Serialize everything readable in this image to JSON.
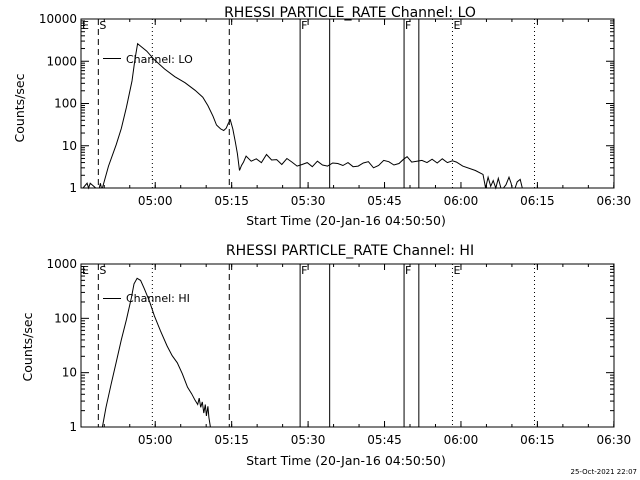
{
  "chart_data": [
    {
      "type": "line",
      "title": "RHESSI PARTICLE_RATE Channel: LO",
      "xlabel": "Start Time (20-Jan-16 04:50:50)",
      "ylabel": "Counts/sec",
      "yscale": "log",
      "ylim": [
        1,
        10000
      ],
      "y_ticks": [
        "1",
        "10",
        "100",
        "1000",
        "10000"
      ],
      "x_range_minutes": [
        -5.4,
        99.2
      ],
      "x_ticks": [
        "05:00",
        "05:15",
        "05:30",
        "05:45",
        "06:00",
        "06:15",
        "06:30"
      ],
      "legend": "Channel: LO",
      "legend_placement": "top-left",
      "markers": [
        {
          "label": "E",
          "minute": -5.4,
          "style": "edge"
        },
        {
          "label": "S",
          "minute": -2.0,
          "style": "dashed"
        },
        {
          "label": "",
          "minute": 8.6,
          "style": "dotted"
        },
        {
          "label": "",
          "minute": 23.7,
          "style": "dashed"
        },
        {
          "label": "F",
          "minute": 37.6,
          "style": "solid"
        },
        {
          "label": "",
          "minute": 43.4,
          "style": "solid"
        },
        {
          "label": "F",
          "minute": 58.0,
          "style": "solid"
        },
        {
          "label": "",
          "minute": 60.9,
          "style": "solid"
        },
        {
          "label": "E",
          "minute": 67.5,
          "style": "dotted"
        },
        {
          "label": "",
          "minute": 83.6,
          "style": "dotted"
        }
      ],
      "series": [
        {
          "x": [
            -5.0,
            -4.2,
            -3.9,
            -3.6,
            -2.5,
            -1.8,
            -1.6,
            -1.4,
            -1.2,
            0.0,
            1.5,
            2.5,
            3.5,
            4.6,
            5.2,
            5.7,
            6.2,
            7.5,
            9.0,
            11.0,
            13.0,
            15.0,
            17.0,
            18.5,
            19.5,
            20.5,
            21.2,
            22.0,
            22.6,
            23.1,
            23.5,
            23.9,
            24.4,
            24.9,
            25.3,
            25.7,
            26.1,
            26.5,
            27,
            28,
            29,
            30,
            31,
            32,
            33,
            34,
            35,
            36,
            37,
            38,
            39,
            40,
            41,
            42,
            43,
            44,
            45,
            46,
            47,
            48,
            49,
            50,
            51,
            52,
            53,
            54,
            55,
            56,
            57,
            57.9,
            58.6,
            59.5,
            60.5,
            61.5,
            62.5,
            63.5,
            64.5,
            65.5,
            66.5,
            67.5,
            68.3,
            69.5,
            72.0,
            73.5,
            74.0,
            74.5,
            75.0,
            75.5,
            76.0,
            76.5,
            77.0,
            77.5,
            78.0,
            78.6,
            79.0,
            79.2,
            79.8,
            80.2,
            80.8,
            81.2
          ],
          "values": [
            1.0,
            1.3,
            1.0,
            1.3,
            1.0,
            1.0,
            1.3,
            1.0,
            1.0,
            3.3,
            10.6,
            25.6,
            80.8,
            340,
            1125,
            2600,
            2320,
            1740,
            1080,
            655,
            430,
            310,
            205,
            141,
            89,
            50,
            31,
            25,
            23,
            26,
            34,
            41,
            25,
            12.1,
            6.5,
            2.6,
            3.4,
            4.1,
            5.7,
            4.3,
            4.9,
            4.0,
            6.2,
            4.6,
            4.7,
            3.6,
            5.0,
            4.1,
            3.3,
            3.6,
            4.0,
            3.2,
            4.3,
            3.5,
            3.3,
            3.9,
            3.8,
            3.4,
            4.0,
            3.2,
            3.3,
            3.9,
            4.2,
            3.0,
            3.4,
            4.5,
            4.2,
            3.5,
            3.8,
            4.8,
            5.5,
            4.1,
            4.3,
            4.5,
            4.0,
            4.8,
            3.9,
            4.9,
            4.0,
            4.4,
            4.1,
            3.3,
            2.6,
            2.1,
            1.0,
            1.8,
            1.1,
            1.5,
            1.0,
            1.7,
            1.0,
            1.0,
            1.2,
            1.8,
            1.3,
            1.0,
            1.0,
            1.4,
            1.6,
            1.0
          ]
        }
      ]
    },
    {
      "type": "line",
      "title": "RHESSI PARTICLE_RATE Channel: HI",
      "xlabel": "Start Time (20-Jan-16 04:50:50)",
      "ylabel": "Counts/sec",
      "yscale": "log",
      "ylim": [
        1,
        1000
      ],
      "y_ticks": [
        "1",
        "10",
        "100",
        "1000"
      ],
      "x_range_minutes": [
        -5.4,
        99.2
      ],
      "x_ticks": [
        "05:00",
        "05:15",
        "05:30",
        "05:45",
        "06:00",
        "06:15",
        "06:30"
      ],
      "legend": "Channel: HI",
      "legend_placement": "top-left",
      "markers": [
        {
          "label": "E",
          "minute": -5.4,
          "style": "edge"
        },
        {
          "label": "S",
          "minute": -2.0,
          "style": "dashed"
        },
        {
          "label": "",
          "minute": 8.6,
          "style": "dotted"
        },
        {
          "label": "",
          "minute": 23.7,
          "style": "dashed"
        },
        {
          "label": "F",
          "minute": 37.6,
          "style": "solid"
        },
        {
          "label": "",
          "minute": 43.4,
          "style": "solid"
        },
        {
          "label": "F",
          "minute": 58.0,
          "style": "solid"
        },
        {
          "label": "",
          "minute": 60.9,
          "style": "solid"
        },
        {
          "label": "E",
          "minute": 67.5,
          "style": "dotted"
        },
        {
          "label": "",
          "minute": 83.6,
          "style": "dotted"
        }
      ],
      "series": [
        {
          "x": [
            -1.2,
            -0.5,
            0.5,
            1.5,
            2.5,
            3.5,
            4.5,
            5.0,
            5.6,
            6.3,
            7.0,
            8.0,
            9.0,
            10.2,
            11.5,
            12.5,
            13.5,
            14.5,
            15.5,
            16.3,
            17.0,
            17.5,
            17.8,
            18.1,
            18.4,
            18.7,
            19.0,
            19.2,
            19.5,
            19.7,
            20.0
          ],
          "values": [
            1.0,
            2.3,
            6.1,
            15.5,
            40.1,
            94.5,
            240,
            430,
            545,
            500,
            355,
            210,
            111,
            58.7,
            31.0,
            20.5,
            15.2,
            9.5,
            5.4,
            4.1,
            3.1,
            2.6,
            3.4,
            2.3,
            2.9,
            1.8,
            2.6,
            1.6,
            2.4,
            1.5,
            1.0
          ]
        }
      ]
    }
  ],
  "footer": {
    "timestamp": "25-Oct-2021 22:07"
  }
}
